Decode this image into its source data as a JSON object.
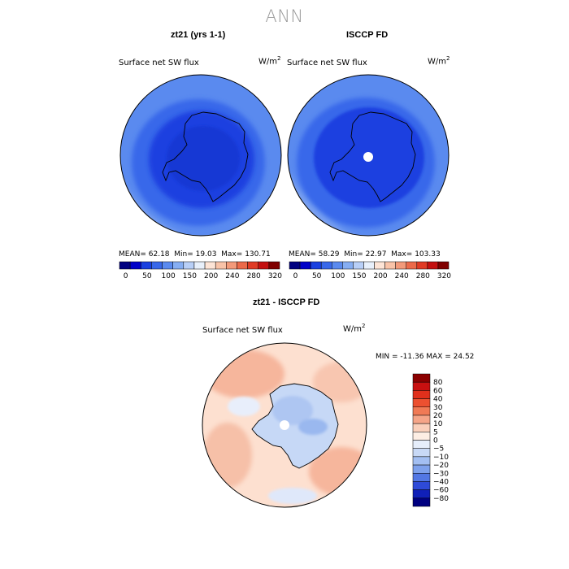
{
  "main_title": "ANN",
  "chart_data": [
    {
      "type": "heatmap",
      "projection": "south-polar-stereographic",
      "title": "zt21 (yrs 1-1)",
      "variable": "Surface net SW flux",
      "units": "W/m",
      "units_exp": "2",
      "stats": {
        "mean_label": "MEAN=",
        "mean": "62.18",
        "min_label": "Min=",
        "min": "19.03",
        "max_label": "Max=",
        "max": "130.71"
      },
      "colorbar_ticks": [
        "0",
        "50",
        "100",
        "150",
        "200",
        "240",
        "280",
        "320"
      ],
      "colorbar_colors": [
        "#000080",
        "#0000c8",
        "#1a40e0",
        "#3868ea",
        "#5a8aef",
        "#86aef3",
        "#b8cff7",
        "#e8f0fb",
        "#fde4d6",
        "#f9c3a8",
        "#f39a7a",
        "#ec6a4a",
        "#e03b25",
        "#c41010",
        "#800000"
      ]
    },
    {
      "type": "heatmap",
      "projection": "south-polar-stereographic",
      "title": "ISCCP FD",
      "variable": "Surface net SW flux",
      "units": "W/m",
      "units_exp": "2",
      "stats": {
        "mean_label": "MEAN=",
        "mean": "58.29",
        "min_label": "Min=",
        "min": "22.97",
        "max_label": "Max=",
        "max": "103.33"
      },
      "colorbar_ticks": [
        "0",
        "50",
        "100",
        "150",
        "200",
        "240",
        "280",
        "320"
      ],
      "colorbar_colors": [
        "#000080",
        "#0000c8",
        "#1a40e0",
        "#3868ea",
        "#5a8aef",
        "#86aef3",
        "#b8cff7",
        "#e8f0fb",
        "#fde4d6",
        "#f9c3a8",
        "#f39a7a",
        "#ec6a4a",
        "#e03b25",
        "#c41010",
        "#800000"
      ]
    },
    {
      "type": "heatmap",
      "projection": "south-polar-stereographic",
      "title": "zt21 - ISCCP FD",
      "variable": "Surface net SW flux",
      "units": "W/m",
      "units_exp": "2",
      "range_text": "MIN = -11.36 MAX =  24.52",
      "legend_labels": [
        "80",
        "60",
        "40",
        "30",
        "20",
        "10",
        "5",
        "0",
        "−5",
        "−10",
        "−20",
        "−30",
        "−40",
        "−60",
        "−80"
      ],
      "legend_colors": [
        "#8b0000",
        "#c81010",
        "#e0301c",
        "#ec5030",
        "#f07a55",
        "#f5a588",
        "#fad0bb",
        "#fdeee4",
        "#e6eefb",
        "#c8d9f6",
        "#a3bff2",
        "#7ea1ec",
        "#5277e4",
        "#2e4ad8",
        "#1020b8",
        "#000080"
      ]
    }
  ]
}
